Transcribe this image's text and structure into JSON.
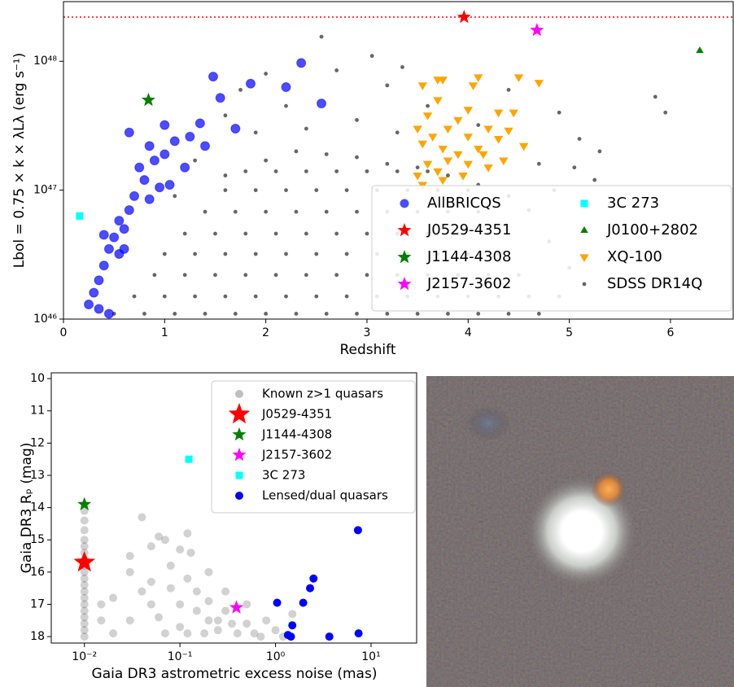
{
  "chart_data": [
    {
      "type": "scatter",
      "xlabel": "Redshift",
      "ylabel": "Lbol = 0.75 × k × λLλ (erg s⁻¹)",
      "xlim": [
        0,
        6.62
      ],
      "xticks": [
        0,
        1,
        2,
        3,
        4,
        5,
        6
      ],
      "ylim": [
        1e+46,
        2.9e+48
      ],
      "yscale": "log",
      "yticks": [
        {
          "value": 1e+46,
          "label": "10⁴⁶"
        },
        {
          "value": 1e+47,
          "label": "10⁴⁷"
        },
        {
          "value": 1e+48,
          "label": "10⁴⁸"
        }
      ],
      "legend": "lower right",
      "legend_columns": 2,
      "hlines": [
        {
          "value": 2.2e+48,
          "color": "#ff0000",
          "style": "dotted"
        }
      ],
      "series": [
        {
          "name": "AllBRICQS",
          "color": "#0000ff",
          "marker": "circle",
          "alpha": 0.7,
          "x": [
            2.35,
            1.48,
            1.85,
            2.2,
            2.55,
            1.55,
            1.0,
            0.65,
            1.35,
            1.7,
            1.25,
            0.85,
            1.1,
            0.9,
            1.0,
            0.75,
            0.8,
            0.95,
            1.05,
            0.7,
            0.85,
            0.65,
            0.55,
            0.6,
            0.5,
            0.4,
            0.45,
            0.55,
            0.4,
            0.35,
            0.3,
            0.25,
            0.35,
            0.45,
            1.2,
            1.4,
            0.6
          ],
          "values": [
            9.7e+47,
            7.6e+47,
            6.7e+47,
            6.3e+47,
            4.7e+47,
            5.2e+47,
            3.2e+47,
            2.8e+47,
            3.3e+47,
            3e+47,
            2.6e+47,
            2.2e+47,
            2.4e+47,
            1.7e+47,
            1.9e+47,
            1.5e+47,
            1.2e+47,
            1.05e+47,
            1.1e+47,
            9e+46,
            8.5e+46,
            7e+46,
            5.8e+46,
            5e+46,
            4.3e+46,
            4.5e+46,
            3.5e+46,
            3.2e+46,
            2.6e+46,
            2e+46,
            1.6e+46,
            1.3e+46,
            1.2e+46,
            1.1e+46,
            1.5e+47,
            2.2e+47,
            3.5e+46
          ]
        },
        {
          "name": "J0529-4351",
          "color": "#ff0000",
          "marker": "star",
          "alpha": 1,
          "x": [
            3.96
          ],
          "values": [
            2.2e+48
          ]
        },
        {
          "name": "J1144-4308",
          "color": "#008000",
          "marker": "star",
          "alpha": 1,
          "x": [
            0.84
          ],
          "values": [
            5e+47
          ]
        },
        {
          "name": "J2157-3602",
          "color": "#ff00ff",
          "marker": "star",
          "alpha": 1,
          "x": [
            4.68
          ],
          "values": [
            1.74e+48
          ]
        },
        {
          "name": "3C 273",
          "color": "#00ffff",
          "marker": "square",
          "alpha": 1,
          "x": [
            0.16
          ],
          "values": [
            6.3e+46
          ]
        },
        {
          "name": "J0100+2802",
          "color": "#008000",
          "marker": "triangle-up",
          "alpha": 1,
          "x": [
            6.29
          ],
          "values": [
            1.21e+48
          ]
        },
        {
          "name": "XQ-100",
          "color": "#ffa500",
          "marker": "triangle-down",
          "alpha": 1,
          "x": [
            3.55,
            3.7,
            3.75,
            4.1,
            4.5,
            4.7,
            4.05,
            3.7,
            4.0,
            4.3,
            3.6,
            3.9,
            4.45,
            3.5,
            3.8,
            4.2,
            4.4,
            3.65,
            4.0,
            4.3,
            4.55,
            3.55,
            3.75,
            3.9,
            4.15,
            3.6,
            3.8,
            4.0,
            3.5,
            3.7,
            3.95,
            4.2,
            3.55,
            3.75,
            4.1,
            4.35
          ],
          "values": [
            6.5e+47,
            7.2e+47,
            7.2e+47,
            7.5e+47,
            7.5e+47,
            6.8e+47,
            6.5e+47,
            5e+47,
            4.2e+47,
            4e+47,
            3.8e+47,
            3.5e+47,
            4e+47,
            3e+47,
            3e+47,
            3e+47,
            2.9e+47,
            2.6e+47,
            2.6e+47,
            2.5e+47,
            2.2e+47,
            2.3e+47,
            2.1e+47,
            1.9e+47,
            1.9e+47,
            1.6e+47,
            1.7e+47,
            1.6e+47,
            1.3e+47,
            1.4e+47,
            1.3e+47,
            1.5e+47,
            1.1e+47,
            1.2e+47,
            2.1e+47,
            1.7e+47
          ]
        },
        {
          "name": "SDSS DR14Q",
          "color": "#000000",
          "marker": "dot",
          "alpha": 0.6,
          "x": [
            2.55,
            3.05,
            3.35,
            2.0,
            2.7,
            1.75,
            3.2,
            4.4,
            5.85,
            5.95,
            4.9,
            3.6,
            2.2,
            1.6,
            2.9,
            4.1,
            2.4,
            3.3,
            1.9,
            5.1,
            5.3,
            5.05,
            5.25,
            4.85,
            4.7,
            1.3,
            1.1,
            1.6,
            2.0,
            2.3,
            2.6,
            2.9,
            3.2,
            3.5,
            3.8,
            4.1,
            4.4,
            4.6,
            4.8,
            5.0,
            4.9,
            0.5,
            0.8,
            1.1,
            1.4,
            1.7,
            2.0,
            2.3,
            2.6,
            2.9,
            3.2,
            3.5,
            3.8,
            4.1,
            4.4,
            4.7,
            0.7,
            1.0,
            1.3,
            1.6,
            1.9,
            2.2,
            2.5,
            2.8,
            3.1,
            3.4,
            3.7,
            4.0,
            4.3,
            4.6,
            0.9,
            1.2,
            1.5,
            1.8,
            2.1,
            2.4,
            2.7,
            3.0,
            3.3,
            3.6,
            3.9,
            4.2,
            4.5,
            1.0,
            1.3,
            1.6,
            1.9,
            2.2,
            2.5,
            2.8,
            3.1,
            3.4,
            3.7,
            4.0,
            4.3,
            1.2,
            1.5,
            1.8,
            2.1,
            2.4,
            2.7,
            3.0,
            3.3,
            3.6,
            3.9,
            4.2,
            1.4,
            1.7,
            2.0,
            2.3,
            2.6,
            2.9,
            3.2,
            3.5,
            3.8,
            4.1,
            1.6,
            1.9,
            2.2,
            2.5,
            2.8,
            3.1,
            3.4,
            3.7,
            4.0,
            1.8,
            2.1,
            2.4,
            2.7,
            3.0,
            3.3,
            3.6
          ],
          "values": [
            1.55e+48,
            1.1e+48,
            9e+47,
            8e+47,
            8.5e+47,
            6e+47,
            6.5e+47,
            6e+47,
            5.3e+47,
            4e+47,
            4e+47,
            4.5e+47,
            4.5e+47,
            3.8e+47,
            3.5e+47,
            3.2e+47,
            3e+47,
            2.8e+47,
            2.8e+47,
            2.5e+47,
            2e+47,
            1.5e+47,
            1.2e+47,
            1e+47,
            1.6e+47,
            1.7e+47,
            9e+46,
            1.3e+47,
            1.7e+47,
            2e+47,
            1.9e+47,
            1.8e+47,
            1.6e+47,
            1.5e+47,
            1.3e+47,
            1.1e+47,
            9e+46,
            7e+46,
            4e+46,
            2.5e+46,
            1.5e+46,
            1.1e+46,
            1.1e+46,
            1.1e+46,
            1.1e+46,
            1.1e+46,
            1.1e+46,
            1.1e+46,
            1.1e+46,
            1.1e+46,
            1.1e+46,
            1.1e+46,
            1.1e+46,
            1.1e+46,
            1.1e+46,
            1.1e+46,
            1.5e+46,
            1.5e+46,
            1.5e+46,
            1.5e+46,
            1.5e+46,
            1.5e+46,
            1.5e+46,
            1.5e+46,
            1.5e+46,
            1.5e+46,
            1.5e+46,
            1.5e+46,
            1.5e+46,
            1.5e+46,
            2.2e+46,
            2.2e+46,
            2.2e+46,
            2.2e+46,
            2.2e+46,
            2.2e+46,
            2.2e+46,
            2.2e+46,
            2.2e+46,
            2.2e+46,
            2.2e+46,
            2.2e+46,
            2.2e+46,
            3.2e+46,
            3.2e+46,
            3.2e+46,
            3.2e+46,
            3.2e+46,
            3.2e+46,
            3.2e+46,
            3.2e+46,
            3.2e+46,
            3.2e+46,
            3.2e+46,
            3.2e+46,
            4.6e+46,
            4.6e+46,
            4.6e+46,
            4.6e+46,
            4.6e+46,
            4.6e+46,
            4.6e+46,
            4.6e+46,
            4.6e+46,
            4.6e+46,
            4.6e+46,
            6.8e+46,
            6.8e+46,
            6.8e+46,
            6.8e+46,
            6.8e+46,
            6.8e+46,
            6.8e+46,
            6.8e+46,
            6.8e+46,
            6.8e+46,
            1e+47,
            1e+47,
            1e+47,
            1e+47,
            1e+47,
            1e+47,
            1e+47,
            1e+47,
            1e+47,
            1.4e+47,
            1.4e+47,
            1.4e+47,
            1.4e+47,
            1.4e+47,
            1.4e+47,
            1.4e+47
          ]
        }
      ]
    },
    {
      "type": "scatter",
      "xlabel": "Gaia DR3 astrometric excess noise  (mas)",
      "ylabel": "Gaia DR3 Rₚ  (mag)",
      "xlim": [
        0.0045,
        30
      ],
      "xscale": "log",
      "xticks": [
        {
          "value": 0.01,
          "label": "10⁻²"
        },
        {
          "value": 0.1,
          "label": "10⁻¹"
        },
        {
          "value": 1,
          "label": "10⁰"
        },
        {
          "value": 10,
          "label": "10¹"
        }
      ],
      "ylim": [
        18.2,
        9.82
      ],
      "yticks": [
        10,
        11,
        12,
        13,
        14,
        15,
        16,
        17,
        18
      ],
      "legend": "upper right",
      "legend_columns": 1,
      "series": [
        {
          "name": "Known z>1 quasars",
          "color": "#000000",
          "marker": "circle",
          "alpha": 0.18,
          "x": [
            0.01,
            0.01,
            0.01,
            0.01,
            0.01,
            0.01,
            0.01,
            0.01,
            0.01,
            0.01,
            0.01,
            0.01,
            0.01,
            0.01,
            0.01,
            0.01,
            0.01,
            0.01,
            0.01,
            0.04,
            0.05,
            0.07,
            0.1,
            0.13,
            0.2,
            0.3,
            0.5,
            0.8,
            1.0,
            1.5,
            0.03,
            0.02,
            0.015,
            0.02,
            0.03,
            0.05,
            0.05,
            0.08,
            0.1,
            0.12,
            0.15,
            0.15,
            0.2,
            0.2,
            0.25,
            0.3,
            0.35,
            0.4,
            0.5,
            0.6,
            0.1,
            0.07,
            0.12,
            0.18,
            0.25,
            0.08,
            0.04,
            0.06,
            0.7,
            1.2,
            0.015,
            0.03,
            0.06,
            0.12
          ],
          "values": [
            14.1,
            14.4,
            14.7,
            15.0,
            15.2,
            15.4,
            15.6,
            15.8,
            16.0,
            16.2,
            16.4,
            16.6,
            16.8,
            17.0,
            17.2,
            17.4,
            17.6,
            17.8,
            18.0,
            14.3,
            15.2,
            15.0,
            15.3,
            15.4,
            16.0,
            16.6,
            17.0,
            17.5,
            17.8,
            17.3,
            16.0,
            16.8,
            17.5,
            17.9,
            17.5,
            17.0,
            16.3,
            16.5,
            17.0,
            16.2,
            17.2,
            16.6,
            17.5,
            16.9,
            17.8,
            17.2,
            17.6,
            17.9,
            17.6,
            17.9,
            17.7,
            17.9,
            17.9,
            17.9,
            17.5,
            15.8,
            16.6,
            17.4,
            18.0,
            18.0,
            17.0,
            15.5,
            14.9,
            14.8
          ]
        },
        {
          "name": "J0529-4351",
          "color": "#ff0000",
          "marker": "star",
          "alpha": 1,
          "x": [
            0.01
          ],
          "values": [
            15.7
          ]
        },
        {
          "name": "J1144-4308",
          "color": "#008000",
          "marker": "star",
          "alpha": 1,
          "x": [
            0.01
          ],
          "values": [
            13.9
          ]
        },
        {
          "name": "J2157-3602",
          "color": "#ff00ff",
          "marker": "star",
          "alpha": 1,
          "x": [
            0.39
          ],
          "values": [
            17.1
          ]
        },
        {
          "name": "3C 273",
          "color": "#00ffff",
          "marker": "square",
          "alpha": 1,
          "x": [
            0.124
          ],
          "values": [
            12.5
          ]
        },
        {
          "name": "Lensed/dual quasars",
          "color": "#0000ff",
          "marker": "circle",
          "alpha": 1,
          "x": [
            7.3,
            2.5,
            2.3,
            1.04,
            1.95,
            1.5,
            1.35,
            1.45,
            3.66,
            7.4
          ],
          "values": [
            14.7,
            16.2,
            16.5,
            16.95,
            16.95,
            17.65,
            17.95,
            18.0,
            18.0,
            17.9
          ]
        }
      ]
    }
  ]
}
